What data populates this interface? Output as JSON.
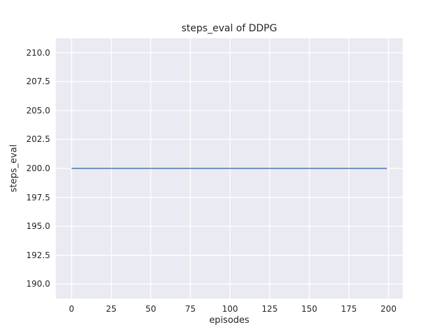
{
  "chart_data": {
    "type": "line",
    "title": "steps_eval of DDPG",
    "xlabel": "episodes",
    "ylabel": "steps_eval",
    "xlim": [
      -10,
      209
    ],
    "ylim": [
      188.75,
      211.25
    ],
    "xtick_values": [
      0,
      25,
      50,
      75,
      100,
      125,
      150,
      175,
      200
    ],
    "xtick_labels": [
      "0",
      "25",
      "50",
      "75",
      "100",
      "125",
      "150",
      "175",
      "200"
    ],
    "ytick_values": [
      190.0,
      192.5,
      195.0,
      197.5,
      200.0,
      202.5,
      205.0,
      207.5,
      210.0
    ],
    "ytick_labels": [
      "190.0",
      "192.5",
      "195.0",
      "197.5",
      "200.0",
      "202.5",
      "205.0",
      "207.5",
      "210.0"
    ],
    "grid": true,
    "legend": false,
    "series": [
      {
        "name": "steps_eval",
        "x": [
          0,
          199
        ],
        "values": [
          200,
          200
        ],
        "color": "#4c72b0"
      }
    ],
    "styles": {
      "plot_bg": "#eaeaf2",
      "grid_color": "#ffffff",
      "text_color": "#262626",
      "figure_bg": "#ffffff"
    }
  }
}
